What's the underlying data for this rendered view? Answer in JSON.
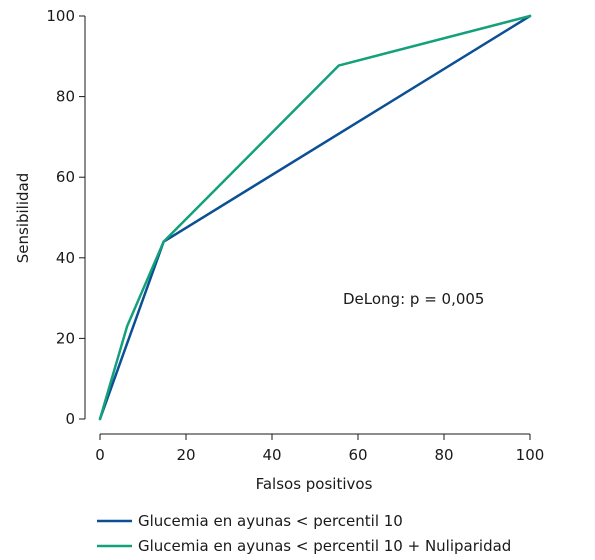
{
  "chart_data": {
    "type": "line",
    "title": "",
    "xlabel": "Falsos positivos",
    "ylabel": "Sensibilidad",
    "xlim": [
      0,
      100
    ],
    "ylim": [
      0,
      100
    ],
    "xticks": [
      0,
      20,
      40,
      60,
      80,
      100
    ],
    "yticks": [
      0,
      20,
      40,
      60,
      80,
      100
    ],
    "grid": false,
    "legend_position": "bottom",
    "annotation": "DeLong: p = 0,005",
    "series": [
      {
        "name": "Glucemia en ayunas < percentil 10",
        "color": "#0b4f94",
        "points": [
          [
            0,
            0
          ],
          [
            14.8,
            44
          ],
          [
            100,
            100
          ]
        ]
      },
      {
        "name": "Glucemia en ayunas < percentil 10 + Nuliparidad",
        "color": "#13a07a",
        "points": [
          [
            0,
            0
          ],
          [
            6.3,
            23
          ],
          [
            14.8,
            44
          ],
          [
            55.5,
            87.7
          ],
          [
            100,
            100
          ]
        ]
      }
    ]
  }
}
